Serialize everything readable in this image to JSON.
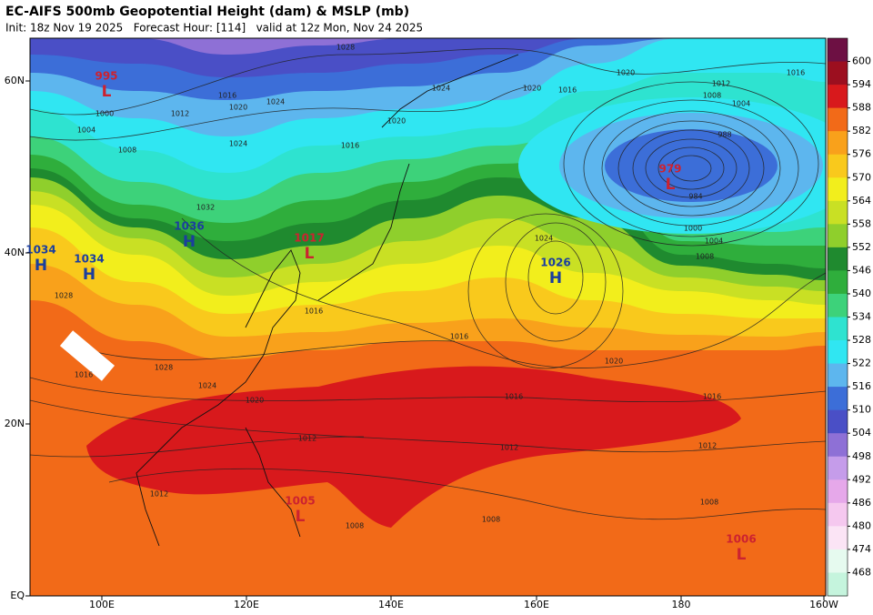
{
  "header": {
    "title": "EC-AIFS 500mb Geopotential Height (dam) & MSLP (mb)",
    "subtitle": "Init: 18z Nov 19 2025   Forecast Hour: [114]   valid at 12z Mon, Nov 24 2025"
  },
  "map": {
    "lat_labels": [
      "60N",
      "40N",
      "20N",
      "EQ"
    ],
    "lon_labels": [
      "100E",
      "120E",
      "140E",
      "160E",
      "180",
      "160W"
    ],
    "centers": [
      {
        "pressure": "995",
        "type": "L"
      },
      {
        "pressure": "1036",
        "type": "H"
      },
      {
        "pressure": "1034",
        "type": "H"
      },
      {
        "pressure": "1034",
        "type": "H"
      },
      {
        "pressure": "1017",
        "type": "L"
      },
      {
        "pressure": "1026",
        "type": "H"
      },
      {
        "pressure": "979",
        "type": "L"
      },
      {
        "pressure": "1005",
        "type": "L"
      },
      {
        "pressure": "1006",
        "type": "L"
      }
    ],
    "center_colors": {
      "H": "#1b3e9e",
      "L": "#cc2230"
    },
    "isobar_labels": [
      "1028",
      "1024",
      "1020",
      "1016",
      "1024",
      "1016",
      "1020",
      "1012",
      "1024",
      "1000",
      "1004",
      "1008",
      "1020",
      "1016",
      "1012",
      "1008",
      "1004",
      "1016",
      "1020",
      "1032",
      "1028",
      "1024",
      "1000",
      "1004",
      "1008",
      "1016",
      "1016",
      "1020",
      "1028",
      "1024",
      "1016",
      "1020",
      "1016",
      "1016",
      "1012",
      "1012",
      "1012",
      "1012",
      "1008",
      "1008",
      "1008",
      "984",
      "988"
    ]
  },
  "colorbar": {
    "levels": [
      600,
      594,
      588,
      582,
      576,
      570,
      564,
      558,
      552,
      546,
      540,
      534,
      528,
      522,
      516,
      510,
      504,
      498,
      492,
      486,
      480,
      474,
      468
    ],
    "colors": [
      "#6d1043",
      "#9c0f1f",
      "#d8191c",
      "#f26a18",
      "#f9a11b",
      "#f9c91c",
      "#f2ee1c",
      "#c9e024",
      "#8fcf2c",
      "#1f8a2f",
      "#2fae3c",
      "#3dd27a",
      "#2ee3d0",
      "#30e6f2",
      "#5db6ee",
      "#3c6ed8",
      "#4a4fc6",
      "#8e70d6",
      "#c59cea",
      "#e6a8ea",
      "#f5c8ef",
      "#fbe4f5",
      "#e6faef",
      "#c5f4dd"
    ]
  }
}
